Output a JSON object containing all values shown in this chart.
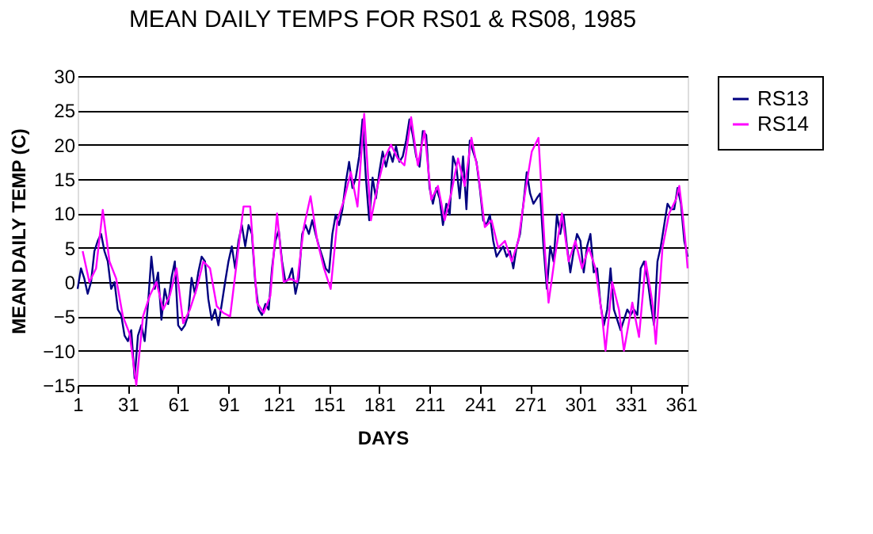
{
  "chart_data": {
    "type": "line",
    "title": "MEAN DAILY TEMPS FOR RS01 & RS08, 1985",
    "xlabel": "DAYS",
    "ylabel": "MEAN DAILY TEMP (C)",
    "xlim": [
      1,
      365
    ],
    "xticks": [
      1,
      31,
      61,
      91,
      121,
      151,
      181,
      211,
      241,
      271,
      301,
      331,
      361
    ],
    "ylim": [
      -15,
      30
    ],
    "yticks": [
      -15,
      -10,
      -5,
      0,
      5,
      10,
      15,
      20,
      25,
      30
    ],
    "grid": "y",
    "legend": "right",
    "marker": "none",
    "line_style": "solid",
    "series": [
      {
        "name": "RS13",
        "color": "#000080",
        "x": [
          1,
          3,
          5,
          7,
          9,
          11,
          13,
          15,
          17,
          19,
          21,
          23,
          25,
          27,
          29,
          31,
          33,
          35,
          37,
          39,
          41,
          43,
          45,
          47,
          49,
          51,
          53,
          55,
          57,
          59,
          61,
          63,
          65,
          67,
          69,
          71,
          73,
          75,
          77,
          79,
          81,
          83,
          85,
          87,
          89,
          91,
          93,
          95,
          97,
          99,
          101,
          103,
          105,
          107,
          109,
          111,
          113,
          115,
          117,
          119,
          121,
          123,
          125,
          127,
          129,
          131,
          133,
          135,
          137,
          139,
          141,
          143,
          145,
          147,
          149,
          151,
          153,
          155,
          157,
          159,
          161,
          163,
          165,
          167,
          169,
          171,
          173,
          175,
          177,
          179,
          181,
          183,
          185,
          187,
          189,
          191,
          193,
          195,
          197,
          199,
          201,
          203,
          205,
          207,
          209,
          211,
          213,
          215,
          217,
          219,
          221,
          223,
          225,
          227,
          229,
          231,
          233,
          235,
          237,
          239,
          241,
          243,
          245,
          247,
          249,
          251,
          253,
          255,
          257,
          259,
          261,
          263,
          265,
          267,
          269,
          271,
          273,
          275,
          277,
          279,
          281,
          283,
          285,
          287,
          289,
          291,
          293,
          295,
          297,
          299,
          301,
          303,
          305,
          307,
          309,
          311,
          313,
          315,
          317,
          319,
          321,
          323,
          325,
          327,
          329,
          331,
          333,
          335,
          337,
          339,
          341,
          343,
          345,
          347,
          349,
          351,
          353,
          355,
          357,
          359,
          361,
          363,
          365
        ],
        "values": [
          -1,
          2,
          0.5,
          -1.7,
          0,
          4.5,
          6,
          7,
          4.5,
          3,
          -1,
          0,
          -4,
          -4.8,
          -7.8,
          -8.6,
          -7,
          -14,
          -7.8,
          -6.3,
          -8.6,
          -3.2,
          3.7,
          -1,
          1.4,
          -5.5,
          -1,
          -3.2,
          0.6,
          3,
          -6.3,
          -7,
          -6.3,
          -4.8,
          0.6,
          -1.7,
          1.4,
          3.7,
          3,
          -2.5,
          -5.5,
          -4,
          -6.3,
          -3.2,
          0,
          3,
          5.2,
          2,
          6,
          8.3,
          5.2,
          8.3,
          7,
          0,
          -4,
          -4.8,
          -3.2,
          -4,
          2,
          6,
          7.5,
          3,
          0,
          0.5,
          2,
          -1.7,
          0.6,
          7,
          8.3,
          7,
          9,
          7,
          5.2,
          3.7,
          2,
          1.4,
          7,
          9.8,
          8.3,
          10.6,
          14.5,
          17.5,
          13.7,
          15.2,
          18.3,
          23.7,
          15.2,
          9,
          15.2,
          12.2,
          16,
          19,
          16.8,
          19,
          17.5,
          19.8,
          17.5,
          18.3,
          20.6,
          23.7,
          21.4,
          18.3,
          16.8,
          22,
          21.4,
          13.7,
          11.4,
          13.7,
          12.2,
          8.3,
          11.4,
          9.8,
          18.3,
          16.8,
          12.2,
          18.3,
          10.6,
          20.6,
          19,
          17.5,
          13.7,
          9,
          8.3,
          9.8,
          6,
          3.7,
          4.5,
          5.2,
          3.7,
          4.5,
          2,
          5.2,
          7,
          11.4,
          16,
          12.9,
          11.4,
          12.2,
          12.9,
          5.2,
          -1,
          5.2,
          3,
          9.8,
          7,
          9.8,
          5.2,
          1.4,
          4.5,
          7,
          6,
          1.4,
          5.2,
          7,
          1.4,
          2,
          -3.2,
          -6.3,
          -4,
          2,
          -4,
          -5.5,
          -7,
          -5.5,
          -4,
          -4.8,
          -4,
          -4.8,
          2,
          3,
          0.6,
          -3.2,
          -6.3,
          3,
          5.2,
          8.3,
          11.4,
          10.6,
          10.6,
          13.7,
          11.4,
          6,
          3.7
        ]
      },
      {
        "name": "RS14",
        "color": "#ff00ff",
        "x": [
          4,
          8,
          12,
          16,
          20,
          24,
          28,
          32,
          36,
          40,
          44,
          48,
          52,
          56,
          60,
          64,
          68,
          72,
          76,
          80,
          84,
          88,
          92,
          96,
          100,
          104,
          108,
          112,
          116,
          120,
          124,
          128,
          132,
          136,
          140,
          144,
          148,
          152,
          156,
          160,
          164,
          168,
          172,
          176,
          180,
          184,
          188,
          192,
          196,
          200,
          204,
          208,
          212,
          216,
          220,
          224,
          228,
          232,
          236,
          240,
          244,
          248,
          252,
          256,
          260,
          264,
          268,
          272,
          276,
          280,
          282,
          286,
          290,
          294,
          298,
          302,
          306,
          310,
          314,
          316,
          320,
          324,
          327,
          332,
          336,
          340,
          344,
          346,
          350,
          354,
          358,
          360,
          362,
          364,
          365
        ],
        "values": [
          4.5,
          0,
          2,
          10.5,
          3,
          0.5,
          -5,
          -7.5,
          -15,
          -5,
          -2,
          0,
          -4,
          -2,
          2,
          -6,
          -4,
          -1,
          3,
          2,
          -3.5,
          -4.5,
          -5,
          3,
          11,
          11,
          -3,
          -4.5,
          -2,
          10,
          0,
          0.5,
          0,
          8,
          12.5,
          6,
          2,
          -1,
          9,
          12,
          16,
          11,
          24.5,
          9,
          14,
          18,
          20,
          18,
          17,
          24,
          17,
          22,
          12,
          14,
          9,
          13,
          18,
          14,
          21,
          16,
          8,
          9,
          5,
          6,
          3,
          6,
          13,
          19,
          21,
          4,
          -3,
          4,
          10,
          3,
          6,
          2,
          5,
          2,
          -5,
          -10,
          0,
          -4,
          -10,
          -3,
          -8,
          3,
          -3,
          -9,
          5,
          10,
          12,
          14,
          10,
          5,
          2
        ]
      }
    ]
  }
}
